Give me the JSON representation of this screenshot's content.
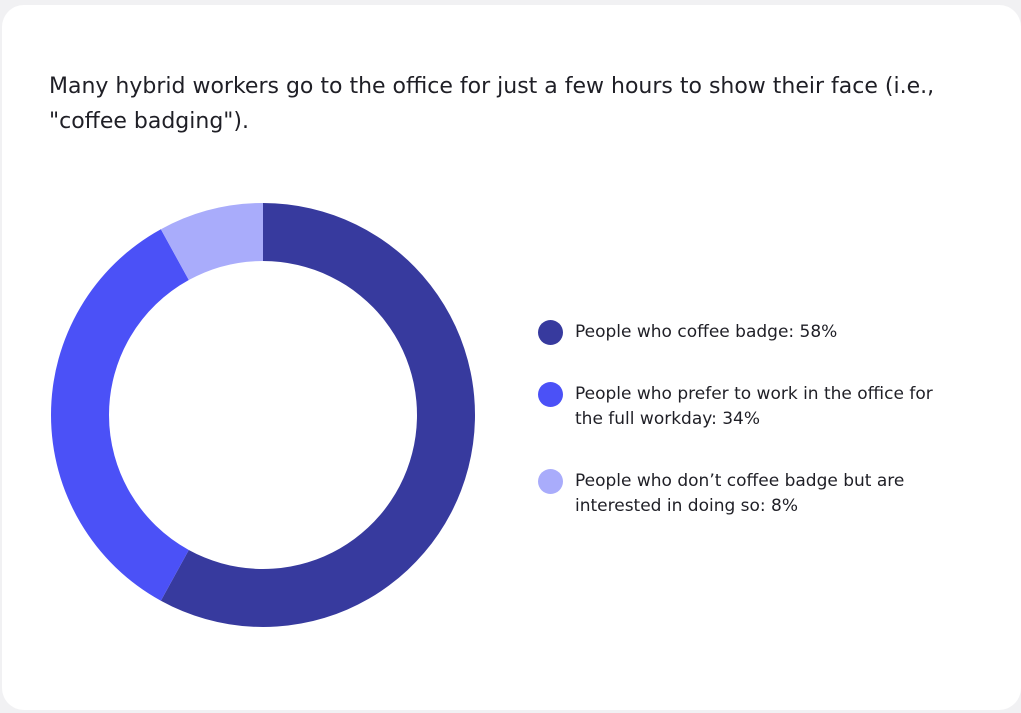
{
  "title": "Many hybrid workers go to the office for just a few hours to show their face (i.e., \"coffee badging\").",
  "chart_data": {
    "type": "pie",
    "variant": "donut",
    "title": "Many hybrid workers go to the office for just a few hours to show their face (i.e., \"coffee badging\").",
    "legend_position": "right",
    "slices": [
      {
        "label": "People who coffee badge: 58%",
        "value": 58,
        "color": "#373a9e"
      },
      {
        "label": "People who prefer to work in the office for the full workday: 34%",
        "value": 34,
        "color": "#4b51f7"
      },
      {
        "label": "People who don’t coffee badge but are interested in doing so: 8%",
        "value": 8,
        "color": "#a9acfb"
      }
    ]
  }
}
